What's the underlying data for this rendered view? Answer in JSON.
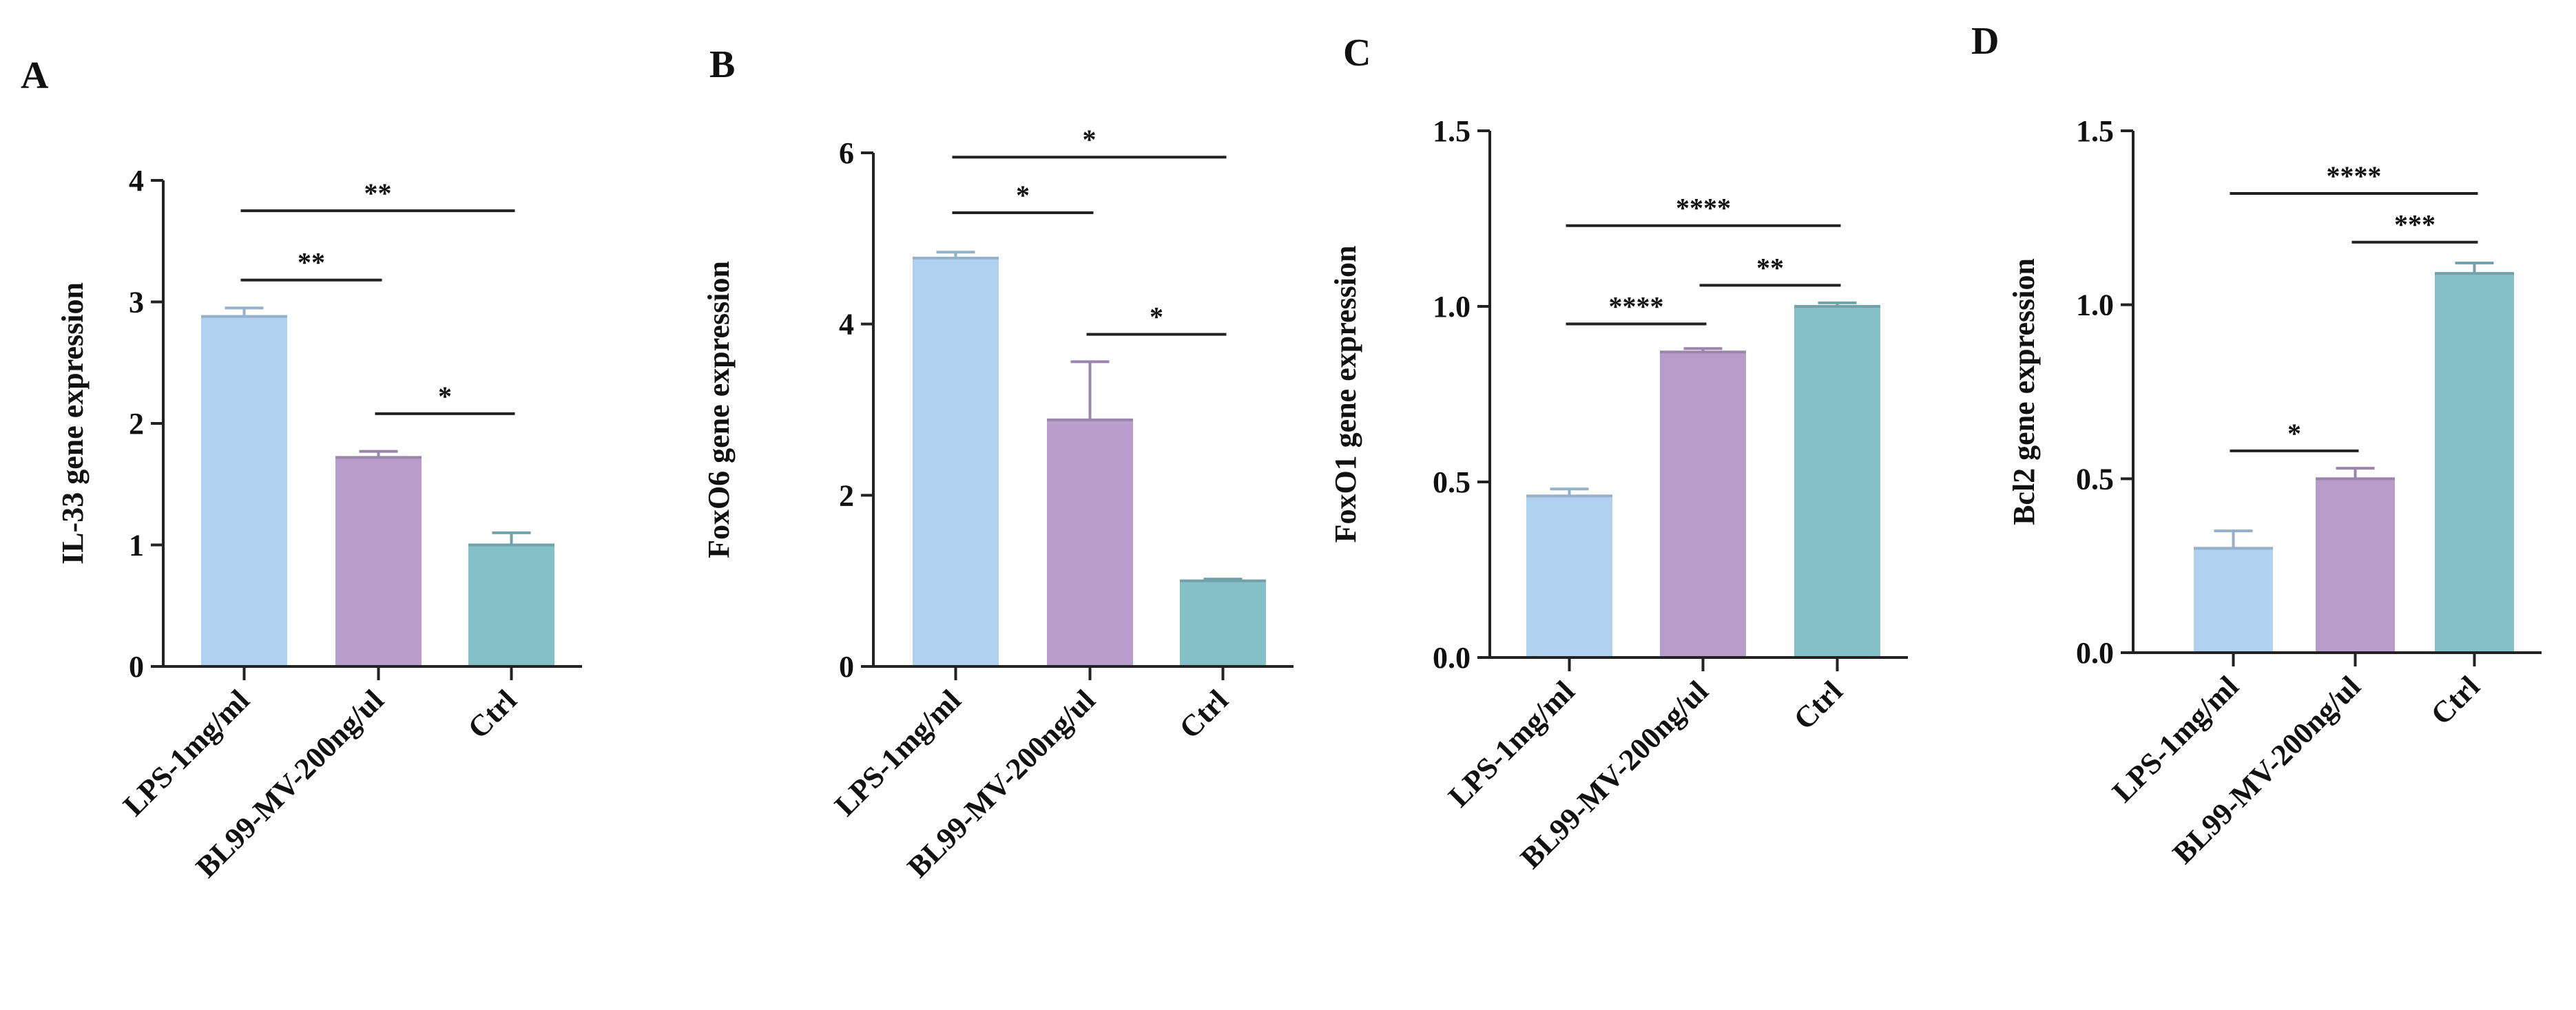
{
  "colors": {
    "bar_1": "#afd0ee",
    "bar_2": "#b89cca",
    "bar_3": "#85bfc8",
    "axis": "#222222"
  },
  "chart_data": [
    {
      "type": "bar",
      "panel": "A",
      "ylabel": "IL-33 gene expression",
      "categories": [
        "LPS-1mg/ml",
        "BL99-MV-200ng/ul",
        "Ctrl"
      ],
      "values": [
        2.88,
        1.72,
        1.0
      ],
      "errors": [
        0.07,
        0.05,
        0.1
      ],
      "ylim": [
        0,
        4
      ],
      "yticks": [
        0,
        1,
        2,
        3,
        4
      ],
      "ytick_labels": [
        "0",
        "1",
        "2",
        "3",
        "4"
      ],
      "significance": [
        {
          "from": 0,
          "to": 1,
          "label": "**",
          "y": 3.18
        },
        {
          "from": 0,
          "to": 2,
          "label": "**",
          "y": 3.75
        },
        {
          "from": 1,
          "to": 2,
          "label": "*",
          "y": 2.08
        }
      ]
    },
    {
      "type": "bar",
      "panel": "B",
      "ylabel": "FoxO6 gene expression",
      "categories": [
        "LPS-1mg/ml",
        "BL99-MV-200ng/ul",
        "Ctrl"
      ],
      "values": [
        4.77,
        2.88,
        1.0
      ],
      "errors": [
        0.07,
        0.68,
        0.02
      ],
      "ylim": [
        0,
        6
      ],
      "yticks": [
        0,
        2,
        4,
        6
      ],
      "ytick_labels": [
        "0",
        "2",
        "4",
        "6"
      ],
      "significance": [
        {
          "from": 0,
          "to": 1,
          "label": "*",
          "y": 5.3
        },
        {
          "from": 0,
          "to": 2,
          "label": "*",
          "y": 5.95
        },
        {
          "from": 1,
          "to": 2,
          "label": "*",
          "y": 3.88
        }
      ]
    },
    {
      "type": "bar",
      "panel": "C",
      "ylabel": "FoxO1 gene expression",
      "categories": [
        "LPS-1mg/ml",
        "BL99-MV-200ng/ul",
        "Ctrl"
      ],
      "values": [
        0.46,
        0.87,
        1.0
      ],
      "errors": [
        0.02,
        0.01,
        0.01
      ],
      "ylim": [
        0,
        1.5
      ],
      "yticks": [
        0,
        0.5,
        1.0,
        1.5
      ],
      "ytick_labels": [
        "0.0",
        "0.5",
        "1.0",
        "1.5"
      ],
      "significance": [
        {
          "from": 0,
          "to": 1,
          "label": "****",
          "y": 0.95
        },
        {
          "from": 0,
          "to": 2,
          "label": "****",
          "y": 1.23
        },
        {
          "from": 1,
          "to": 2,
          "label": "**",
          "y": 1.06
        }
      ]
    },
    {
      "type": "bar",
      "panel": "D",
      "ylabel": "Bcl2 gene expression",
      "categories": [
        "LPS-1mg/ml",
        "BL99-MV-200ng/ul",
        "Ctrl"
      ],
      "values": [
        0.3,
        0.5,
        1.09
      ],
      "errors": [
        0.05,
        0.03,
        0.03
      ],
      "ylim": [
        0,
        1.5
      ],
      "yticks": [
        0,
        0.5,
        1.0,
        1.5
      ],
      "ytick_labels": [
        "0.0",
        "0.5",
        "1.0",
        "1.5"
      ],
      "significance": [
        {
          "from": 0,
          "to": 1,
          "label": "*",
          "y": 0.58
        },
        {
          "from": 0,
          "to": 2,
          "label": "****",
          "y": 1.32
        },
        {
          "from": 1,
          "to": 2,
          "label": "***",
          "y": 1.18
        }
      ]
    }
  ]
}
